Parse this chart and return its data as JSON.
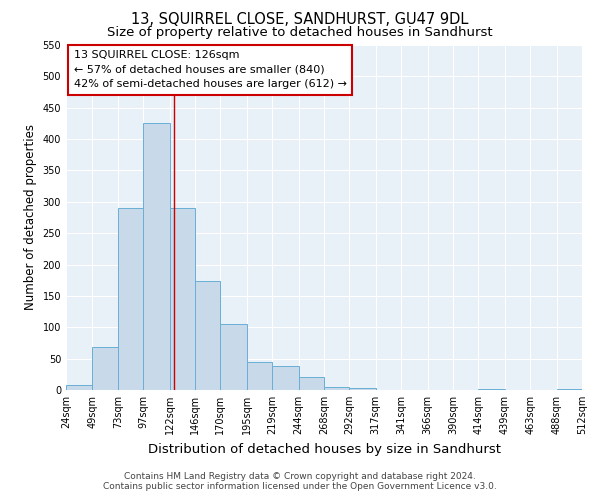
{
  "title": "13, SQUIRREL CLOSE, SANDHURST, GU47 9DL",
  "subtitle": "Size of property relative to detached houses in Sandhurst",
  "xlabel": "Distribution of detached houses by size in Sandhurst",
  "ylabel": "Number of detached properties",
  "bin_edges": [
    24,
    49,
    73,
    97,
    122,
    146,
    170,
    195,
    219,
    244,
    268,
    292,
    317,
    341,
    366,
    390,
    414,
    439,
    463,
    488,
    512
  ],
  "bar_heights": [
    8,
    68,
    290,
    425,
    290,
    173,
    106,
    44,
    38,
    20,
    5,
    3,
    0,
    0,
    0,
    0,
    1,
    0,
    0,
    2
  ],
  "bar_color": "#c8daea",
  "bar_edgecolor": "#6aafd6",
  "bar_linewidth": 0.7,
  "vline_x": 126,
  "vline_color": "#cc0000",
  "ylim": [
    0,
    550
  ],
  "yticks": [
    0,
    50,
    100,
    150,
    200,
    250,
    300,
    350,
    400,
    450,
    500,
    550
  ],
  "annotation_title": "13 SQUIRREL CLOSE: 126sqm",
  "annotation_line1": "← 57% of detached houses are smaller (840)",
  "annotation_line2": "42% of semi-detached houses are larger (612) →",
  "footer_line1": "Contains HM Land Registry data © Crown copyright and database right 2024.",
  "footer_line2": "Contains public sector information licensed under the Open Government Licence v3.0.",
  "fig_bg_color": "#ffffff",
  "plot_bg_color": "#e8f0f8",
  "title_fontsize": 10.5,
  "subtitle_fontsize": 9.5,
  "xlabel_fontsize": 9.5,
  "ylabel_fontsize": 8.5,
  "tick_fontsize": 7,
  "annotation_fontsize": 8,
  "footer_fontsize": 6.5
}
